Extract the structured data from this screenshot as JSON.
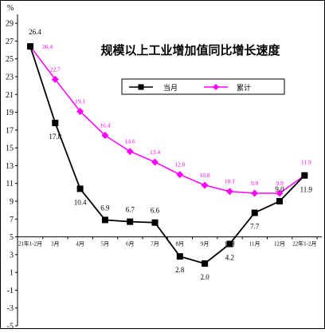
{
  "chart_data": {
    "type": "line",
    "title": "规模以上工业增加值同比增长速度",
    "ylabel": "%",
    "xlabel": "",
    "ylim": [
      -5,
      30
    ],
    "yticks": [
      -5,
      -3,
      -1,
      1,
      3,
      5,
      7,
      9,
      11,
      13,
      15,
      17,
      19,
      21,
      23,
      25,
      27,
      29
    ],
    "grid": false,
    "legend_position": "top-center",
    "categories": [
      "21年1-2月",
      "3月",
      "4月",
      "5月",
      "6月",
      "7月",
      "8月",
      "9月",
      "10月",
      "11月",
      "12月",
      "22年1-2月"
    ],
    "series": [
      {
        "name": "当月",
        "color": "#000000",
        "marker": "square",
        "values": [
          26.4,
          17.8,
          10.4,
          6.9,
          6.7,
          6.6,
          2.8,
          2.0,
          4.2,
          7.7,
          9.0,
          11.9
        ],
        "labels": [
          "26.4",
          "17.8",
          "10.4",
          "6.9",
          "6.7",
          "6.6",
          "2.8",
          "2.0",
          "4.2",
          "7.7",
          "9.0",
          "11.9"
        ],
        "label_placement": [
          "above",
          "below",
          "below",
          "above",
          "above",
          "above",
          "below",
          "below",
          "below",
          "below",
          "above",
          "below"
        ]
      },
      {
        "name": "累计",
        "color": "#ff00ff",
        "marker": "diamond",
        "values": [
          26.4,
          22.7,
          19.1,
          16.4,
          14.6,
          13.4,
          12.0,
          10.8,
          10.1,
          9.9,
          9.9,
          11.9
        ],
        "labels": [
          "26.4",
          "22.7",
          "19.1",
          "16.4",
          "14.6",
          "13.4",
          "12.0",
          "10.8",
          "10.1",
          "9.9",
          "9.9",
          "11.9"
        ],
        "label_placement": [
          "right",
          "above",
          "above",
          "above",
          "above",
          "above",
          "above",
          "above",
          "above",
          "above",
          "above",
          "above"
        ]
      }
    ]
  }
}
